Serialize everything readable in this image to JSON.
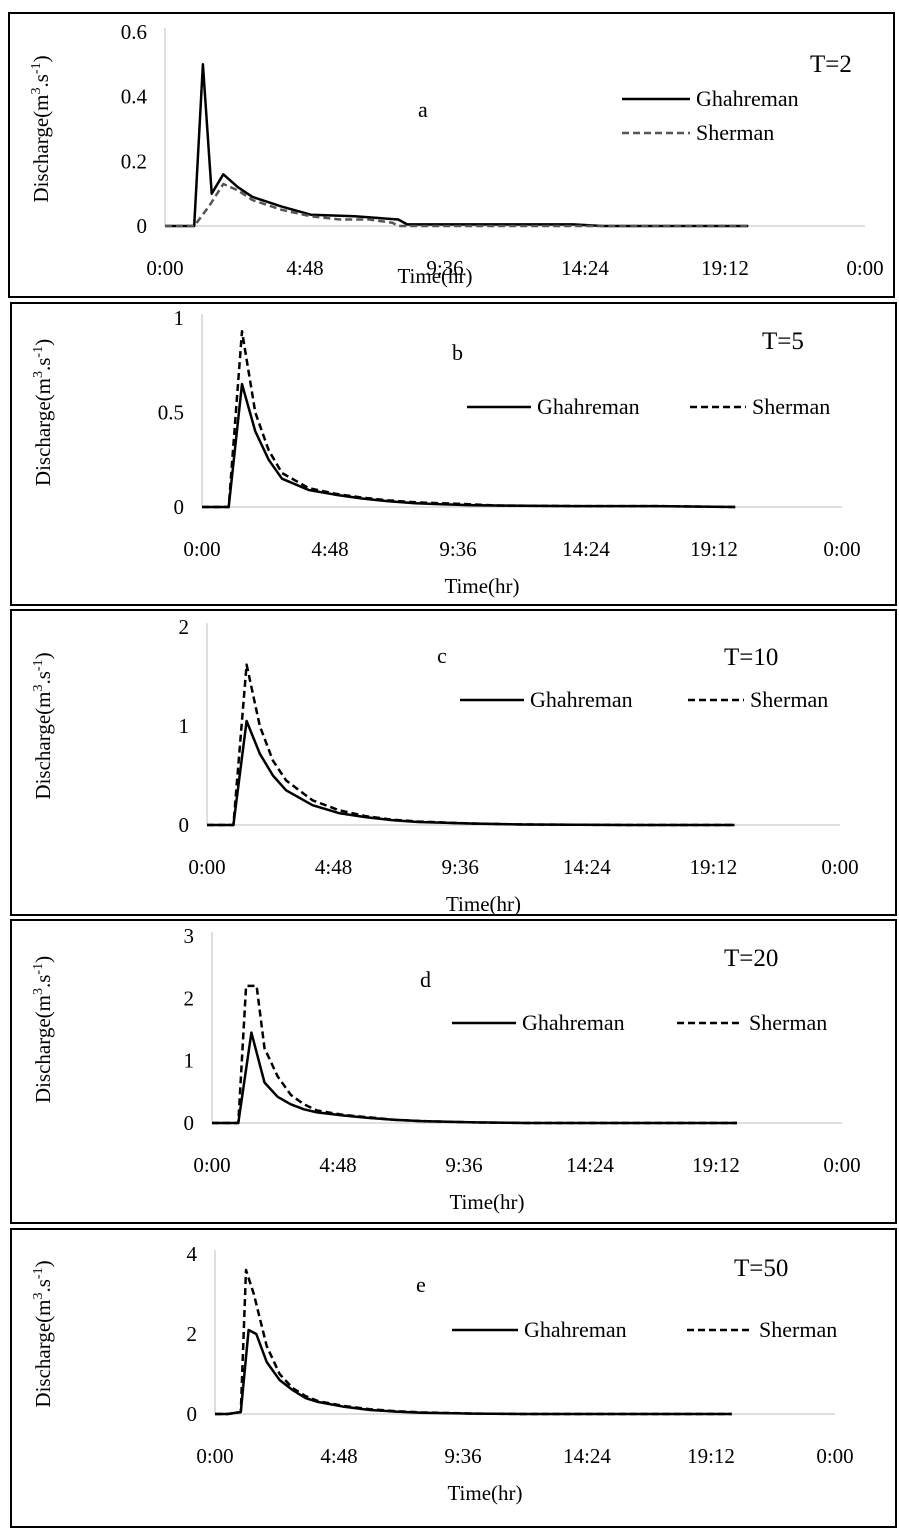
{
  "chart_data": [
    {
      "type": "line",
      "panel_letter": "a",
      "return_period_label": "T=2",
      "xlabel": "Time(hr)",
      "ylabel": "Discharge(m3.s-1)",
      "x_tick_labels": [
        "0:00",
        "4:48",
        "9:36",
        "14:24",
        "19:12",
        "0:00"
      ],
      "y_tick_labels": [
        "0",
        "0.2",
        "0.4",
        "0.6"
      ],
      "ylim": [
        0,
        0.6
      ],
      "x_unit": "hours",
      "xlim": [
        0,
        24
      ],
      "legend_placement": "right",
      "series": [
        {
          "name": "Ghahreman",
          "style": "solid",
          "color": "#000000",
          "x": [
            0,
            1,
            1.3,
            1.6,
            2.0,
            2.5,
            3.0,
            4.0,
            5.0,
            6.5,
            8.0,
            8.3,
            10,
            12,
            14,
            15,
            20
          ],
          "y": [
            0,
            0,
            0.5,
            0.1,
            0.16,
            0.12,
            0.09,
            0.06,
            0.035,
            0.03,
            0.02,
            0.005,
            0.005,
            0.005,
            0.005,
            0,
            0
          ]
        },
        {
          "name": "Sherman",
          "style": "dashed",
          "color": "#555555",
          "x": [
            0,
            1,
            1.5,
            2.0,
            2.5,
            3.0,
            4.0,
            5.0,
            6.0,
            7.0,
            7.8,
            8.0,
            12,
            14,
            20
          ],
          "y": [
            0,
            0,
            0.06,
            0.13,
            0.11,
            0.08,
            0.05,
            0.03,
            0.02,
            0.02,
            0.01,
            0,
            0,
            0,
            0
          ]
        }
      ]
    },
    {
      "type": "line",
      "panel_letter": "b",
      "return_period_label": "T=5",
      "xlabel": "Time(hr)",
      "ylabel": "Discharge(m3.s-1)",
      "x_tick_labels": [
        "0:00",
        "4:48",
        "9:36",
        "14:24",
        "19:12",
        "0:00"
      ],
      "y_tick_labels": [
        "0",
        "0.5",
        "1"
      ],
      "ylim": [
        0,
        1
      ],
      "x_unit": "hours",
      "xlim": [
        0,
        24
      ],
      "legend_placement": "right",
      "series": [
        {
          "name": "Ghahreman",
          "style": "solid",
          "color": "#000000",
          "x": [
            0,
            1,
            1.5,
            2.0,
            2.5,
            3.0,
            4.0,
            5.0,
            6.0,
            7.0,
            8.0,
            9.0,
            10.0,
            11.0,
            14.0,
            17.0,
            20.0
          ],
          "y": [
            0,
            0,
            0.65,
            0.4,
            0.25,
            0.15,
            0.09,
            0.065,
            0.045,
            0.03,
            0.02,
            0.015,
            0.01,
            0.008,
            0.005,
            0.005,
            0
          ]
        },
        {
          "name": "Sherman",
          "style": "dashed",
          "color": "#000000",
          "x": [
            0,
            1,
            1.5,
            2.0,
            2.5,
            3.0,
            4.0,
            5.0,
            6.0,
            7.0,
            8.0,
            9.0,
            10.0,
            11.0,
            14.0,
            17.0,
            20.0
          ],
          "y": [
            0,
            0,
            0.93,
            0.5,
            0.3,
            0.18,
            0.1,
            0.07,
            0.05,
            0.035,
            0.025,
            0.02,
            0.015,
            0.008,
            0.005,
            0.005,
            0
          ]
        }
      ]
    },
    {
      "type": "line",
      "panel_letter": "c",
      "return_period_label": "T=10",
      "xlabel": "Time(hr)",
      "ylabel": "Discharge(m3.s-1)",
      "x_tick_labels": [
        "0:00",
        "4:48",
        "9:36",
        "14:24",
        "19:12",
        "0:00"
      ],
      "y_tick_labels": [
        "0",
        "1",
        "2"
      ],
      "ylim": [
        0,
        2
      ],
      "x_unit": "hours",
      "xlim": [
        0,
        24
      ],
      "legend_placement": "right",
      "series": [
        {
          "name": "Ghahreman",
          "style": "solid",
          "color": "#000000",
          "x": [
            0,
            1,
            1.5,
            2.0,
            2.5,
            3.0,
            4.0,
            5.0,
            6.0,
            7.0,
            8.0,
            10.0,
            12.0,
            16.0,
            20.0
          ],
          "y": [
            0,
            0,
            1.05,
            0.72,
            0.5,
            0.35,
            0.2,
            0.12,
            0.08,
            0.05,
            0.03,
            0.015,
            0.005,
            0,
            0
          ]
        },
        {
          "name": "Sherman",
          "style": "dashed",
          "color": "#000000",
          "x": [
            0,
            1,
            1.5,
            2.0,
            2.5,
            3.0,
            4.0,
            5.0,
            6.0,
            7.0,
            8.0,
            10.0,
            12.0,
            16.0,
            20.0
          ],
          "y": [
            0,
            0,
            1.62,
            1.0,
            0.65,
            0.45,
            0.25,
            0.15,
            0.09,
            0.055,
            0.035,
            0.015,
            0.005,
            0,
            0
          ]
        }
      ]
    },
    {
      "type": "line",
      "panel_letter": "d",
      "return_period_label": "T=20",
      "xlabel": "Time(hr)",
      "ylabel": "Discharge(m3.s-1)",
      "x_tick_labels": [
        "0:00",
        "4:48",
        "9:36",
        "14:24",
        "19:12",
        "0:00"
      ],
      "y_tick_labels": [
        "0",
        "1",
        "2",
        "3"
      ],
      "ylim": [
        0,
        3
      ],
      "x_unit": "hours",
      "xlim": [
        0,
        24
      ],
      "legend_placement": "right",
      "series": [
        {
          "name": "Ghahreman",
          "style": "solid",
          "color": "#000000",
          "x": [
            0,
            1,
            1.5,
            2.0,
            2.5,
            3.0,
            3.5,
            4.0,
            5.0,
            6.0,
            7.0,
            8.0,
            10.0,
            12.0,
            20.0
          ],
          "y": [
            0,
            0,
            1.45,
            0.65,
            0.42,
            0.3,
            0.22,
            0.17,
            0.12,
            0.08,
            0.05,
            0.03,
            0.01,
            0,
            0
          ]
        },
        {
          "name": "Sherman",
          "style": "dashed",
          "color": "#000000",
          "x": [
            0,
            1,
            1.3,
            1.7,
            2.0,
            2.5,
            3.0,
            3.5,
            4.0,
            5.0,
            6.0,
            7.0,
            8.0,
            10.0,
            12.0,
            20.0
          ],
          "y": [
            0,
            0,
            2.2,
            2.2,
            1.2,
            0.75,
            0.45,
            0.3,
            0.2,
            0.13,
            0.09,
            0.05,
            0.03,
            0.01,
            0,
            0
          ]
        }
      ]
    },
    {
      "type": "line",
      "panel_letter": "e",
      "return_period_label": "T=50",
      "xlabel": "Time(hr)",
      "ylabel": "Discharge(m3.s-1)",
      "x_tick_labels": [
        "0:00",
        "4:48",
        "9:36",
        "14:24",
        "19:12",
        "0:00"
      ],
      "y_tick_labels": [
        "0",
        "2",
        "4"
      ],
      "ylim": [
        0,
        4
      ],
      "x_unit": "hours",
      "xlim": [
        0,
        24
      ],
      "legend_placement": "right",
      "series": [
        {
          "name": "Ghahreman",
          "style": "solid",
          "color": "#000000",
          "x": [
            0,
            0.5,
            1.0,
            1.3,
            1.6,
            2.0,
            2.5,
            3.0,
            3.5,
            4.0,
            5.0,
            6.0,
            7.0,
            8.0,
            10.0,
            12.0,
            20.0
          ],
          "y": [
            0,
            0,
            0.05,
            2.1,
            2.0,
            1.3,
            0.85,
            0.6,
            0.4,
            0.3,
            0.18,
            0.1,
            0.06,
            0.03,
            0.01,
            0,
            0
          ]
        },
        {
          "name": "Sherman",
          "style": "dashed",
          "color": "#000000",
          "x": [
            0,
            0.5,
            1.0,
            1.2,
            1.5,
            2.0,
            2.5,
            3.0,
            3.5,
            4.0,
            5.0,
            6.0,
            7.0,
            8.0,
            10.0,
            12.0,
            20.0
          ],
          "y": [
            0,
            0,
            0.05,
            3.6,
            3.0,
            1.7,
            1.0,
            0.65,
            0.45,
            0.32,
            0.2,
            0.12,
            0.07,
            0.04,
            0.01,
            0,
            0
          ]
        }
      ]
    }
  ]
}
